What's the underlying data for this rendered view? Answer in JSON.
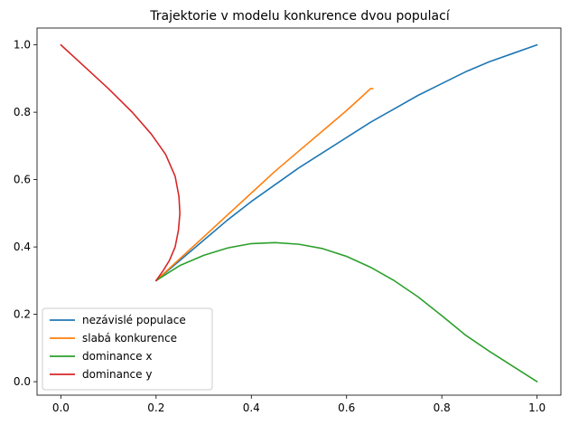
{
  "chart_data": {
    "type": "line",
    "title": "Trajektorie v modelu konkurence dvou populací",
    "xlabel": "",
    "ylabel": "",
    "xlim": [
      -0.05,
      1.05
    ],
    "ylim": [
      -0.04,
      1.05
    ],
    "x_ticks": [
      "0.0",
      "0.2",
      "0.4",
      "0.6",
      "0.8",
      "1.0"
    ],
    "y_ticks": [
      "0.0",
      "0.2",
      "0.4",
      "0.6",
      "0.8",
      "1.0"
    ],
    "x_tick_values": [
      0.0,
      0.2,
      0.4,
      0.6,
      0.8,
      1.0
    ],
    "y_tick_values": [
      0.0,
      0.2,
      0.4,
      0.6,
      0.8,
      1.0
    ],
    "grid": false,
    "legend_position": "lower-left",
    "series": [
      {
        "name": "nezávislé populace",
        "color": "#1f77b4",
        "points": [
          [
            0.2,
            0.3
          ],
          [
            0.25,
            0.36
          ],
          [
            0.3,
            0.42
          ],
          [
            0.35,
            0.48
          ],
          [
            0.4,
            0.535
          ],
          [
            0.45,
            0.585
          ],
          [
            0.5,
            0.635
          ],
          [
            0.55,
            0.68
          ],
          [
            0.6,
            0.725
          ],
          [
            0.65,
            0.77
          ],
          [
            0.7,
            0.81
          ],
          [
            0.75,
            0.85
          ],
          [
            0.8,
            0.885
          ],
          [
            0.85,
            0.92
          ],
          [
            0.9,
            0.95
          ],
          [
            0.95,
            0.975
          ],
          [
            1.0,
            1.0
          ]
        ]
      },
      {
        "name": "slabá konkurence",
        "color": "#ff7f0e",
        "points": [
          [
            0.2,
            0.3
          ],
          [
            0.25,
            0.365
          ],
          [
            0.3,
            0.43
          ],
          [
            0.35,
            0.495
          ],
          [
            0.4,
            0.56
          ],
          [
            0.45,
            0.625
          ],
          [
            0.5,
            0.685
          ],
          [
            0.55,
            0.745
          ],
          [
            0.6,
            0.805
          ],
          [
            0.635,
            0.85
          ],
          [
            0.65,
            0.87
          ],
          [
            0.655,
            0.87
          ]
        ]
      },
      {
        "name": "dominance x",
        "color": "#2ca02c",
        "points": [
          [
            0.2,
            0.3
          ],
          [
            0.25,
            0.345
          ],
          [
            0.3,
            0.375
          ],
          [
            0.35,
            0.397
          ],
          [
            0.4,
            0.41
          ],
          [
            0.45,
            0.413
          ],
          [
            0.5,
            0.408
          ],
          [
            0.55,
            0.395
          ],
          [
            0.6,
            0.372
          ],
          [
            0.65,
            0.34
          ],
          [
            0.7,
            0.3
          ],
          [
            0.75,
            0.252
          ],
          [
            0.8,
            0.196
          ],
          [
            0.85,
            0.138
          ],
          [
            0.9,
            0.09
          ],
          [
            0.95,
            0.045
          ],
          [
            1.0,
            0.0
          ]
        ]
      },
      {
        "name": "dominance y",
        "color": "#d62728",
        "points": [
          [
            0.0,
            1.0
          ],
          [
            0.05,
            0.935
          ],
          [
            0.1,
            0.87
          ],
          [
            0.15,
            0.8
          ],
          [
            0.19,
            0.735
          ],
          [
            0.22,
            0.675
          ],
          [
            0.24,
            0.61
          ],
          [
            0.248,
            0.55
          ],
          [
            0.25,
            0.5
          ],
          [
            0.247,
            0.45
          ],
          [
            0.24,
            0.4
          ],
          [
            0.228,
            0.36
          ],
          [
            0.215,
            0.33
          ],
          [
            0.2,
            0.3
          ]
        ]
      }
    ]
  }
}
